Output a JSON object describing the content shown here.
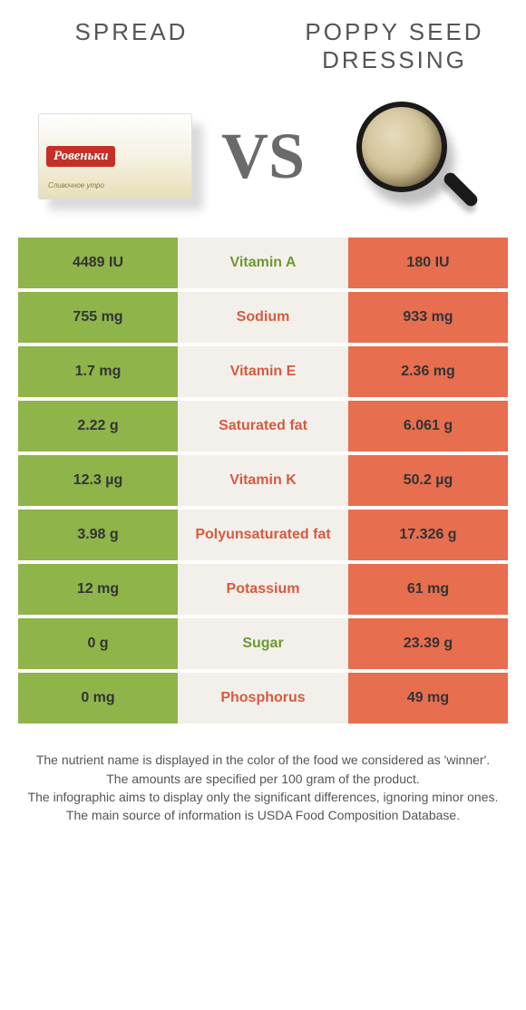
{
  "header": {
    "left_title": "SPREAD",
    "right_title": "POPPY SEED DRESSING"
  },
  "vs_label": "VS",
  "spread_box_label": "Ровеньки",
  "spread_box_sub": "Сливочное утро",
  "colors": {
    "left_bg": "#8fb44a",
    "right_bg": "#e76e4f",
    "mid_bg": "#f3f0ec",
    "green_text": "#6e9a2e",
    "orange_text": "#d85a3e",
    "page_bg": "#ffffff"
  },
  "rows": [
    {
      "left": "4489 IU",
      "name": "Vitamin A",
      "right": "180 IU",
      "winner": "left"
    },
    {
      "left": "755 mg",
      "name": "Sodium",
      "right": "933 mg",
      "winner": "right"
    },
    {
      "left": "1.7 mg",
      "name": "Vitamin E",
      "right": "2.36 mg",
      "winner": "right"
    },
    {
      "left": "2.22 g",
      "name": "Saturated fat",
      "right": "6.061 g",
      "winner": "right"
    },
    {
      "left": "12.3 µg",
      "name": "Vitamin K",
      "right": "50.2 µg",
      "winner": "right"
    },
    {
      "left": "3.98 g",
      "name": "Polyunsaturated fat",
      "right": "17.326 g",
      "winner": "right"
    },
    {
      "left": "12 mg",
      "name": "Potassium",
      "right": "61 mg",
      "winner": "right"
    },
    {
      "left": "0 g",
      "name": "Sugar",
      "right": "23.39 g",
      "winner": "left"
    },
    {
      "left": "0 mg",
      "name": "Phosphorus",
      "right": "49 mg",
      "winner": "right"
    }
  ],
  "notes": [
    "The nutrient name is displayed in the color of the food we considered as 'winner'.",
    "The amounts are specified per 100 gram of the product.",
    "The infographic aims to display only the significant differences, ignoring minor ones.",
    "The main source of information is USDA Food Composition Database."
  ]
}
